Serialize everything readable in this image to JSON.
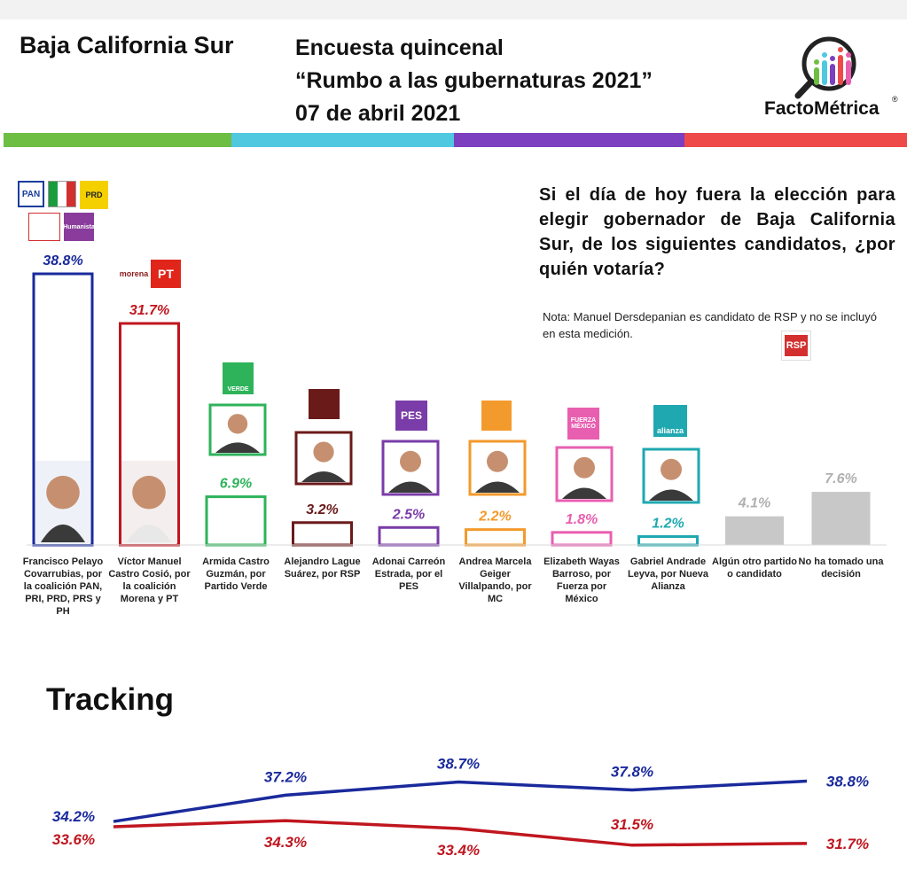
{
  "header": {
    "state": "Baja California Sur",
    "line1": "Encuesta quincenal",
    "line2": "“Rumbo a las gubernaturas 2021”",
    "line3": "07 de abril 2021",
    "brand": "FactoMétrica",
    "brand_mark": "®"
  },
  "stripe_colors": [
    "#6fbe44",
    "#4fc8e0",
    "#7b3fbf",
    "#ef4a4a"
  ],
  "question": "Si el día de hoy fuera la elección para elegir gobernador de Baja California Sur, de los siguientes candidatos, ¿por quién votaría?",
  "note": "Nota: Manuel Dersdepanian es candidato de RSP y no se incluyó en esta medición.",
  "party_logos": {
    "pan": "PAN",
    "prd": "PRD",
    "pt": "PT",
    "morena": "morena",
    "verde": "VERDE",
    "pes": "PES",
    "fuerza": "FUERZA MÉXICO",
    "alianza": "alianza",
    "rsp": "RSP",
    "humanista": "Humanista"
  },
  "chart_data": [
    {
      "type": "bar",
      "title": "",
      "categories": [
        "Francisco Pelayo Covarrubias, por la coalición PAN, PRI, PRD, PRS y PH",
        "Víctor Manuel Castro Cosió, por la coalición Morena y PT",
        "Armida Castro Guzmán, por Partido Verde",
        "Alejandro Lague Suárez, por RSP",
        "Adonai Carreón Estrada, por el PES",
        "Andrea Marcela Geiger Villalpando, por MC",
        "Elizabeth Wayas Barroso, por Fuerza por México",
        "Gabriel Andrade Leyva, por Nueva Alianza",
        "Algún otro partido o candidato",
        "No ha tomado una decisión"
      ],
      "values": [
        38.8,
        31.7,
        6.9,
        3.2,
        2.5,
        2.2,
        1.8,
        1.2,
        4.1,
        7.6
      ],
      "value_labels": [
        "38.8%",
        "31.7%",
        "6.9%",
        "3.2%",
        "2.5%",
        "2.2%",
        "1.8%",
        "1.2%",
        "4.1%",
        "7.6%"
      ],
      "colors": [
        "#1a2a9c",
        "#c0161f",
        "#2eb35a",
        "#6b1a1a",
        "#7a3ca8",
        "#f39a2c",
        "#e85fb0",
        "#1fa8b0",
        "#c8c8c8",
        "#c8c8c8"
      ],
      "outline": [
        true,
        true,
        true,
        true,
        true,
        true,
        true,
        true,
        false,
        false
      ],
      "ylim": [
        0,
        40
      ]
    },
    {
      "type": "line",
      "title": "Tracking",
      "x": [
        1,
        2,
        3,
        4,
        5
      ],
      "series": [
        {
          "values": [
            34.2,
            37.2,
            38.7,
            37.8,
            38.8
          ],
          "labels": [
            "34.2%",
            "37.2%",
            "38.7%",
            "37.8%",
            "38.8%"
          ],
          "color": "#1a2a9c"
        },
        {
          "values": [
            33.6,
            34.3,
            33.4,
            31.5,
            31.7
          ],
          "labels": [
            "33.6%",
            "34.3%",
            "33.4%",
            "31.5%",
            "31.7%"
          ],
          "color": "#c0161f"
        }
      ]
    }
  ]
}
